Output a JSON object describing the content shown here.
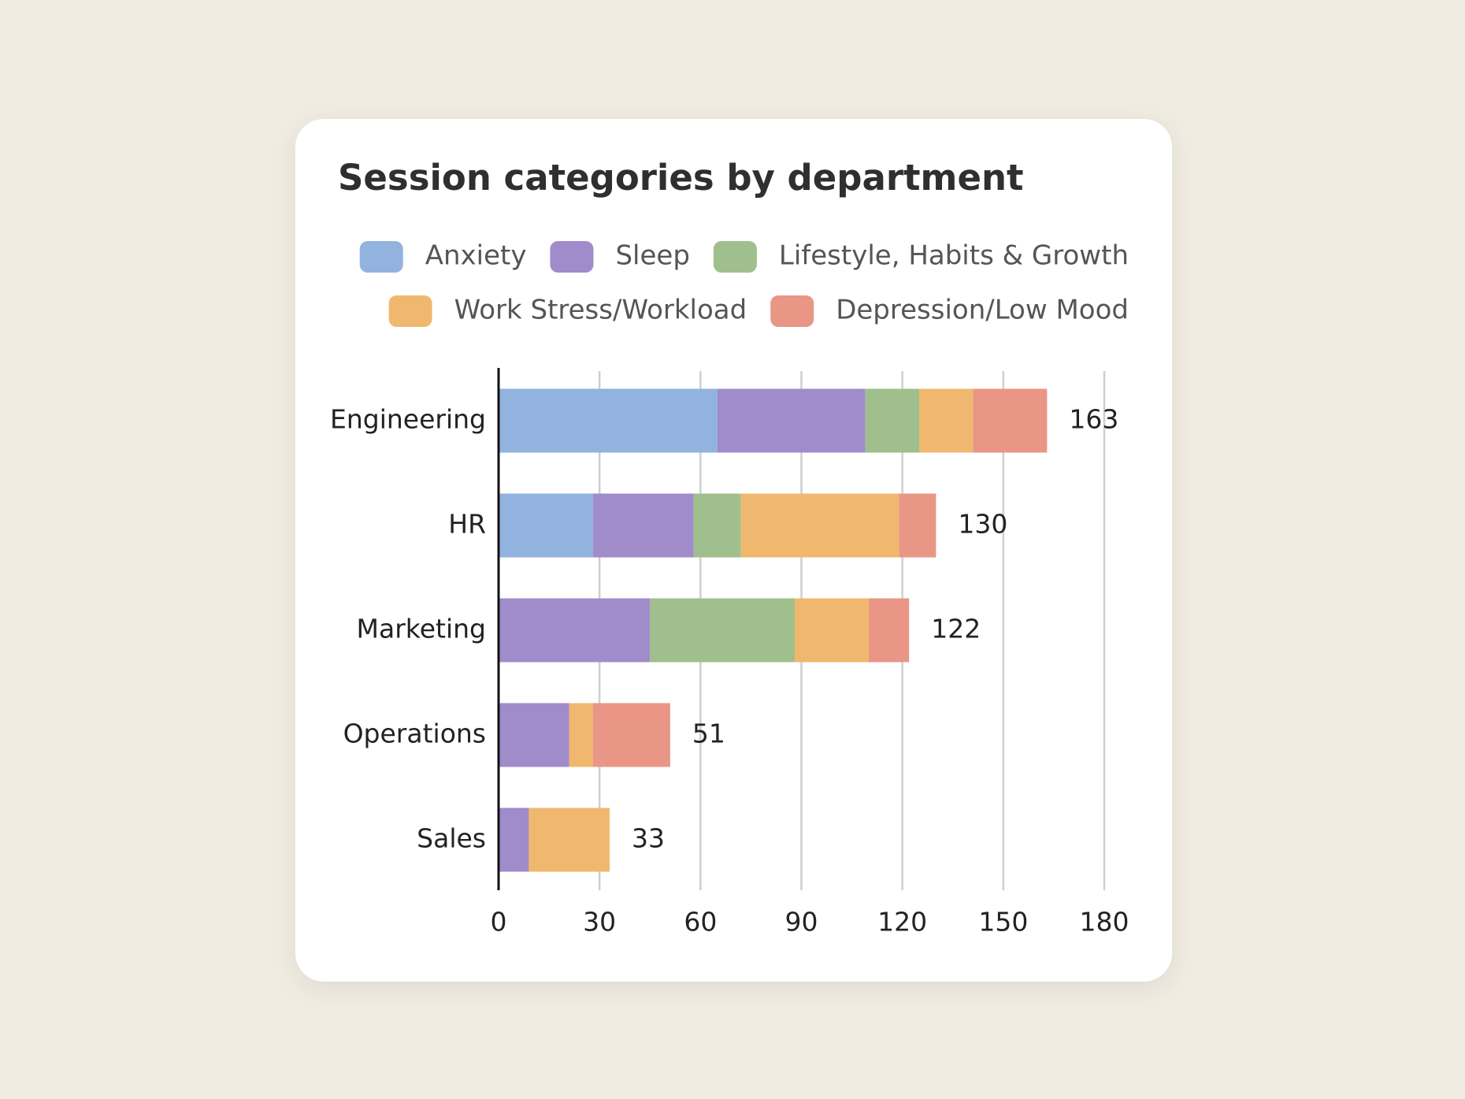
{
  "chart_data": {
    "type": "stacked_bar_horizontal",
    "title": "Session categories by department",
    "categories": [
      "Engineering",
      "HR",
      "Marketing",
      "Operations",
      "Sales"
    ],
    "series": [
      {
        "name": "Anxiety",
        "color": "#92b3dd",
        "values": [
          65,
          28,
          0,
          0,
          0
        ]
      },
      {
        "name": "Sleep",
        "color": "#a08bcb",
        "values": [
          44,
          30,
          45,
          21,
          9
        ]
      },
      {
        "name": "Lifestyle, Habits & Growth",
        "color": "#9fbf8c",
        "values": [
          16,
          14,
          43,
          0,
          0
        ]
      },
      {
        "name": "Work Stress/Workload",
        "color": "#f0b86e",
        "values": [
          16,
          47,
          22,
          7,
          24
        ]
      },
      {
        "name": "Depression/Low Mood",
        "color": "#e99686",
        "values": [
          22,
          11,
          12,
          23,
          0
        ]
      }
    ],
    "totals": [
      163,
      130,
      122,
      51,
      33
    ],
    "xlim": [
      0,
      180
    ],
    "xticks": [
      0,
      30,
      60,
      90,
      120,
      150,
      180
    ],
    "grid": true,
    "legend": "top-right"
  }
}
